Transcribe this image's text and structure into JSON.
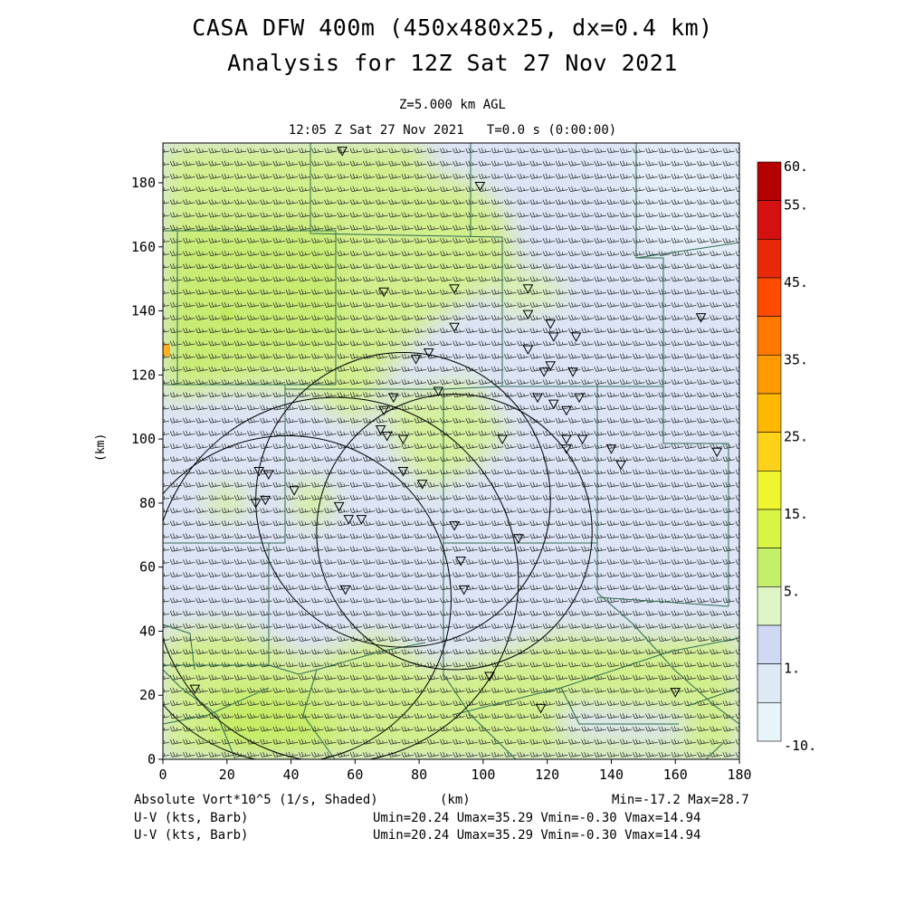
{
  "title_line1": "CASA DFW 400m (450x480x25, dx=0.4 km)",
  "title_line2": "Analysis for 12Z Sat 27 Nov 2021",
  "level_label": "Z=5.000 km AGL",
  "time_label": "12:05 Z Sat 27 Nov 2021   T=0.0 s (0:00:00)",
  "y_axis_label": "(km)",
  "x_axis_label": "(km)",
  "x_ticks": [
    "0",
    "20",
    "40",
    "60",
    "80",
    "100",
    "120",
    "140",
    "160",
    "180"
  ],
  "y_ticks": [
    "0",
    "20",
    "40",
    "60",
    "80",
    "100",
    "120",
    "140",
    "160",
    "180"
  ],
  "colorbar": {
    "labels": [
      "60.",
      "55.",
      "45.",
      "35.",
      "25.",
      "15.",
      "5.",
      "1.",
      "-10."
    ],
    "colors": [
      "#b40000",
      "#d41010",
      "#e82808",
      "#ff4a00",
      "#ff7800",
      "#ff9a00",
      "#ffb800",
      "#ffd21a",
      "#f0f530",
      "#d8f545",
      "#c4ef6a",
      "#dff5c8",
      "#d0d8f4",
      "#dfe9f6",
      "#e8f4fa"
    ]
  },
  "footer": {
    "field_label": "Absolute Vort*10^5 (1/s, Shaded)",
    "field_unit": "(km)",
    "minmax": "Min=-17.2 Max=28.7",
    "wind1_label": "U-V (kts, Barb)",
    "wind1_stats": "Umin=20.24 Umax=35.29 Vmin=-0.30 Vmax=14.94",
    "wind2_label": "U-V (kts, Barb)",
    "wind2_stats": "Umin=20.24 Umax=35.29 Vmin=-0.30 Vmax=14.94"
  },
  "map": {
    "domain_km": [
      180,
      192
    ],
    "range_rings": [
      {
        "cx": 91,
        "cy": 71,
        "r": 43
      },
      {
        "cx": 75,
        "cy": 81,
        "r": 46
      },
      {
        "cx": 54,
        "cy": 56,
        "r": 57
      },
      {
        "cx": 39,
        "cy": 50,
        "r": 51
      }
    ],
    "stations": [
      [
        56,
        190
      ],
      [
        99,
        179
      ],
      [
        69,
        146
      ],
      [
        91,
        147
      ],
      [
        114,
        147
      ],
      [
        91,
        135
      ],
      [
        114,
        139
      ],
      [
        121,
        136
      ],
      [
        122,
        132
      ],
      [
        129,
        132
      ],
      [
        114,
        128
      ],
      [
        128,
        121
      ],
      [
        119,
        121
      ],
      [
        121,
        123
      ],
      [
        79,
        125
      ],
      [
        83,
        127
      ],
      [
        86,
        115
      ],
      [
        72,
        113
      ],
      [
        69,
        109
      ],
      [
        130,
        113
      ],
      [
        122,
        111
      ],
      [
        117,
        113
      ],
      [
        126,
        109
      ],
      [
        68,
        103
      ],
      [
        70,
        101
      ],
      [
        75,
        100
      ],
      [
        106,
        100
      ],
      [
        126,
        100
      ],
      [
        131,
        100
      ],
      [
        126,
        97
      ],
      [
        140,
        97
      ],
      [
        143,
        92
      ],
      [
        173,
        96
      ],
      [
        30,
        90
      ],
      [
        33,
        89
      ],
      [
        75,
        90
      ],
      [
        81,
        86
      ],
      [
        29,
        80
      ],
      [
        32,
        81
      ],
      [
        41,
        84
      ],
      [
        55,
        79
      ],
      [
        58,
        75
      ],
      [
        62,
        75
      ],
      [
        91,
        73
      ],
      [
        111,
        69
      ],
      [
        93,
        62
      ],
      [
        94,
        53
      ],
      [
        57,
        53
      ],
      [
        102,
        26
      ],
      [
        10,
        22
      ],
      [
        118,
        16
      ],
      [
        160,
        21
      ],
      [
        168,
        138
      ]
    ]
  }
}
